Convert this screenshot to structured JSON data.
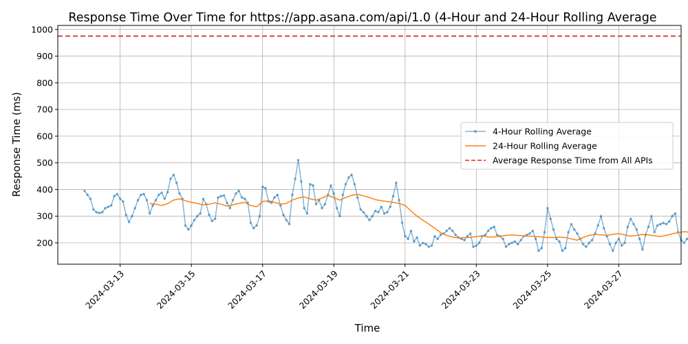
{
  "chart_data": {
    "type": "line",
    "title": "Response Time Over Time for https://app.asana.com/api/1.0 (4-Hour and 24-Hour Rolling Average",
    "xlabel": "Time",
    "ylabel": "Response Time (ms)",
    "xlim": [
      "2024-03-11T06:00",
      "2024-03-28T18:00"
    ],
    "ylim": [
      120,
      1015
    ],
    "x_ticks": [
      "2024-03-13",
      "2024-03-15",
      "2024-03-17",
      "2024-03-19",
      "2024-03-21",
      "2024-03-23",
      "2024-03-25",
      "2024-03-27"
    ],
    "y_ticks": [
      200,
      300,
      400,
      500,
      600,
      700,
      800,
      900,
      1000
    ],
    "grid": true,
    "legend_position": "center-right",
    "series": [
      {
        "name": "4-Hour Rolling Average",
        "color": "#1f77b4",
        "style": "line-with-markers",
        "opacity": 0.55,
        "start": "2024-03-12T00:00",
        "step_hours": 2,
        "values": [
          395,
          380,
          365,
          325,
          315,
          312,
          315,
          330,
          335,
          340,
          375,
          383,
          365,
          355,
          305,
          278,
          300,
          330,
          360,
          380,
          383,
          360,
          310,
          340,
          360,
          380,
          388,
          365,
          390,
          440,
          455,
          425,
          385,
          365,
          265,
          250,
          265,
          285,
          300,
          310,
          365,
          345,
          305,
          282,
          290,
          370,
          375,
          378,
          350,
          330,
          360,
          385,
          395,
          370,
          365,
          350,
          275,
          255,
          265,
          300,
          410,
          405,
          355,
          350,
          370,
          380,
          340,
          305,
          285,
          270,
          380,
          440,
          510,
          430,
          330,
          310,
          420,
          415,
          345,
          360,
          330,
          345,
          380,
          415,
          385,
          330,
          300,
          380,
          420,
          445,
          455,
          420,
          370,
          325,
          315,
          300,
          285,
          300,
          320,
          315,
          335,
          310,
          315,
          335,
          375,
          425,
          360,
          275,
          225,
          215,
          245,
          205,
          220,
          190,
          200,
          195,
          185,
          190,
          225,
          215,
          230,
          235,
          245,
          255,
          245,
          230,
          220,
          215,
          210,
          225,
          235,
          185,
          190,
          200,
          225,
          230,
          245,
          255,
          260,
          230,
          225,
          215,
          185,
          195,
          200,
          205,
          195,
          210,
          225,
          230,
          235,
          245,
          215,
          170,
          180,
          240,
          330,
          290,
          250,
          215,
          205,
          170,
          180,
          240,
          270,
          250,
          235,
          215,
          195,
          185,
          200,
          210,
          235,
          265,
          300,
          255,
          225,
          195,
          170,
          200,
          215,
          190,
          200,
          260,
          290,
          270,
          250,
          215,
          175,
          230,
          260,
          300,
          240,
          265,
          270,
          275,
          270,
          280,
          300,
          310,
          240,
          210,
          200,
          215,
          215,
          215,
          195,
          180,
          200,
          340,
          310,
          260,
          235,
          240,
          270,
          245,
          225,
          220,
          225,
          235,
          250,
          300,
          280,
          240,
          225,
          230,
          215,
          220,
          230,
          245,
          245,
          250,
          255,
          245,
          225,
          260,
          255,
          240,
          205,
          215,
          245,
          265,
          250,
          235,
          225,
          230,
          240,
          245,
          245,
          250,
          255,
          260,
          250
        ]
      },
      {
        "name": "24-Hour Rolling Average",
        "color": "#ff7f0e",
        "style": "line",
        "opacity": 1,
        "start": "2024-03-13T20:00",
        "step_hours": 4,
        "values": [
          348,
          345,
          340,
          347,
          360,
          365,
          358,
          352,
          348,
          342,
          345,
          350,
          345,
          338,
          342,
          348,
          352,
          340,
          335,
          355,
          358,
          352,
          345,
          348,
          360,
          368,
          372,
          365,
          360,
          368,
          378,
          370,
          360,
          370,
          378,
          382,
          376,
          370,
          362,
          358,
          355,
          352,
          348,
          340,
          320,
          300,
          285,
          270,
          255,
          238,
          228,
          222,
          218,
          220,
          220,
          224,
          226,
          222,
          222,
          225,
          228,
          230,
          228,
          226,
          225,
          224,
          222,
          220,
          220,
          222,
          220,
          215,
          210,
          220,
          228,
          232,
          230,
          228,
          232,
          235,
          230,
          225,
          228,
          232,
          230,
          226,
          224,
          228,
          234,
          238,
          242,
          240,
          236,
          240,
          250,
          258,
          255,
          250,
          246,
          244,
          242,
          244,
          248,
          252,
          250,
          248,
          246,
          250,
          256,
          252,
          250,
          248,
          246,
          244,
          242,
          240,
          238,
          240,
          242,
          244,
          246,
          245,
          244
        ]
      },
      {
        "name": "Average Response Time from All APIs",
        "color": "#d62728",
        "style": "dashed",
        "value": 975
      }
    ]
  }
}
